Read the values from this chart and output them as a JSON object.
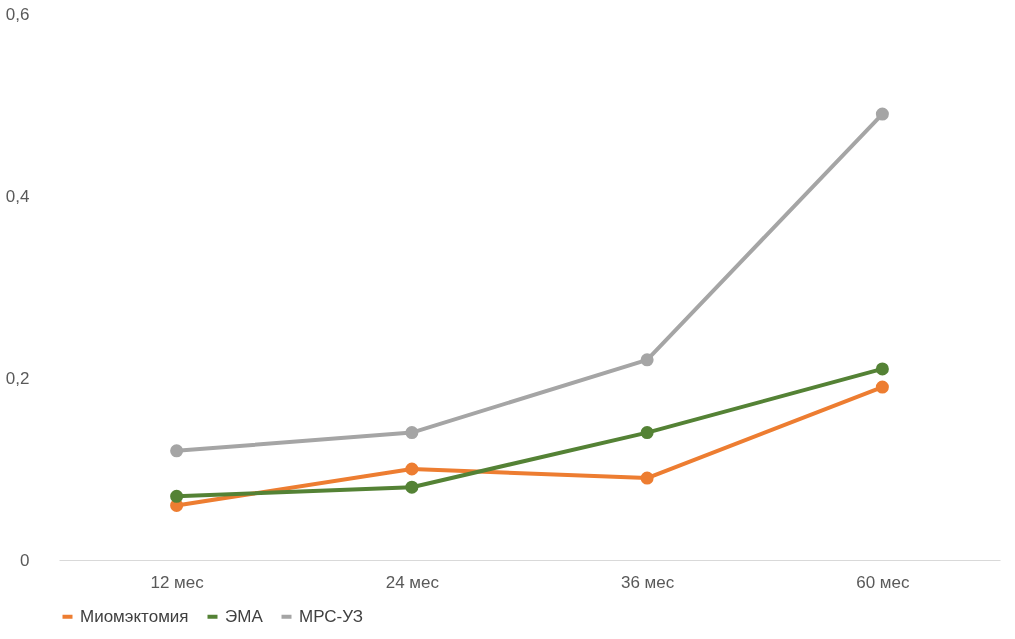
{
  "chart_data": {
    "type": "line",
    "categories": [
      "12 мес",
      "24 мес",
      "36 мес",
      "60 мес"
    ],
    "series": [
      {
        "name": "Миомэктомия",
        "color": "#ed7d31",
        "values": [
          0.06,
          0.1,
          0.09,
          0.19
        ]
      },
      {
        "name": "ЭМА",
        "color": "#548235",
        "values": [
          0.07,
          0.08,
          0.14,
          0.21
        ]
      },
      {
        "name": "МРС-УЗ",
        "color": "#a5a5a5",
        "values": [
          0.12,
          0.14,
          0.22,
          0.49
        ]
      }
    ],
    "ylim": [
      0,
      0.6
    ],
    "yticks": [
      0,
      {
        "value": 0.2,
        "label": "0,2"
      },
      {
        "value": 0.4,
        "label": "0,4"
      },
      {
        "value": 0.6,
        "label": "0,6"
      }
    ],
    "grid": false,
    "legend": "bottom",
    "marker": "circle",
    "line_style": "solid"
  }
}
